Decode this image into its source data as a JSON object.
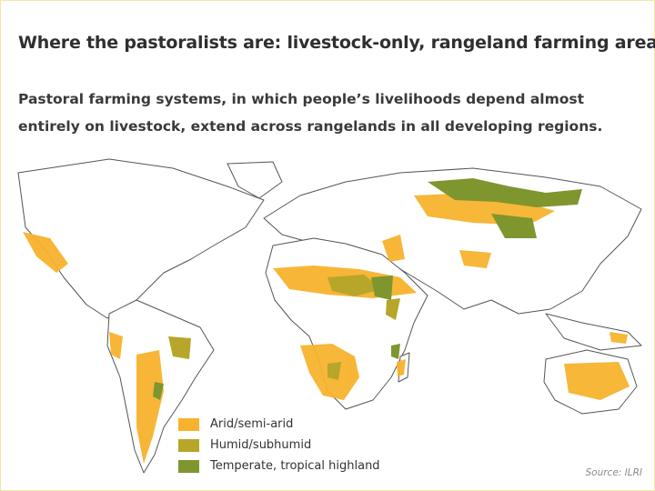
{
  "title": "Where the pastoralists are: livestock-only, rangeland farming areas",
  "subtitle": "Pastoral farming systems, in which people’s livelihoods depend almost entirely on livestock, extend across rangelands in all developing regions.",
  "legend": [
    {
      "label": "Arid/semi-arid",
      "color": "#f7b32d"
    },
    {
      "label": "Humid/subhumid",
      "color": "#b7a62a"
    },
    {
      "label": "Temperate, tropical highland",
      "color": "#7f962e"
    }
  ],
  "source": "Source: ILRI",
  "colors": {
    "land": "#ffffff",
    "border": "#3a3a3a",
    "frame": "#f3e7a8"
  }
}
